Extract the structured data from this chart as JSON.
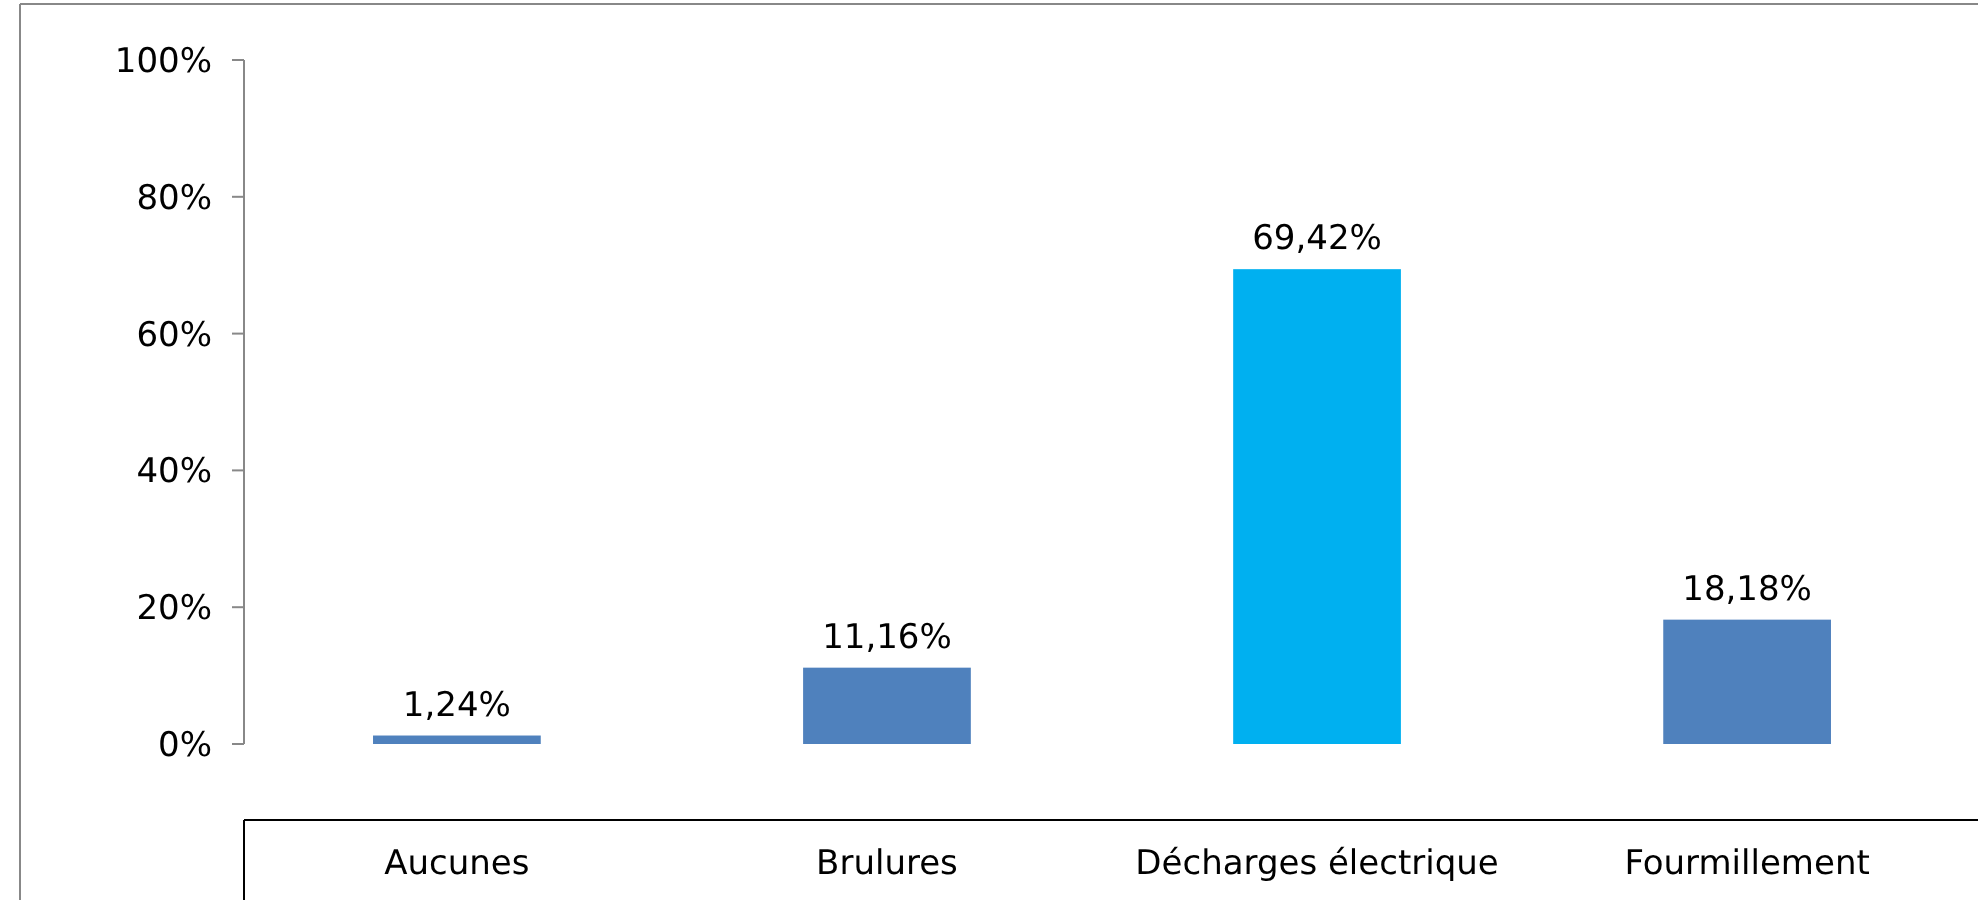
{
  "chart_data": {
    "type": "bar",
    "categories": [
      "Aucunes",
      "Brulures",
      "Décharges électrique",
      "Fourmillement"
    ],
    "values": [
      1.24,
      11.16,
      69.42,
      18.18
    ],
    "colors": [
      "#4f81bd",
      "#4f81bd",
      "#00b0f0",
      "#4f81bd"
    ],
    "value_labels": [
      "1,24%",
      "11,16%",
      "69,42%",
      "18,18%"
    ],
    "ylim": [
      0,
      100
    ],
    "yticks": [
      {
        "value": 0,
        "label": "0%"
      },
      {
        "value": 20,
        "label": "20%"
      },
      {
        "value": 40,
        "label": "40%"
      },
      {
        "value": 60,
        "label": "60%"
      },
      {
        "value": 80,
        "label": "80%"
      },
      {
        "value": 100,
        "label": "100%"
      }
    ],
    "grid": false
  }
}
